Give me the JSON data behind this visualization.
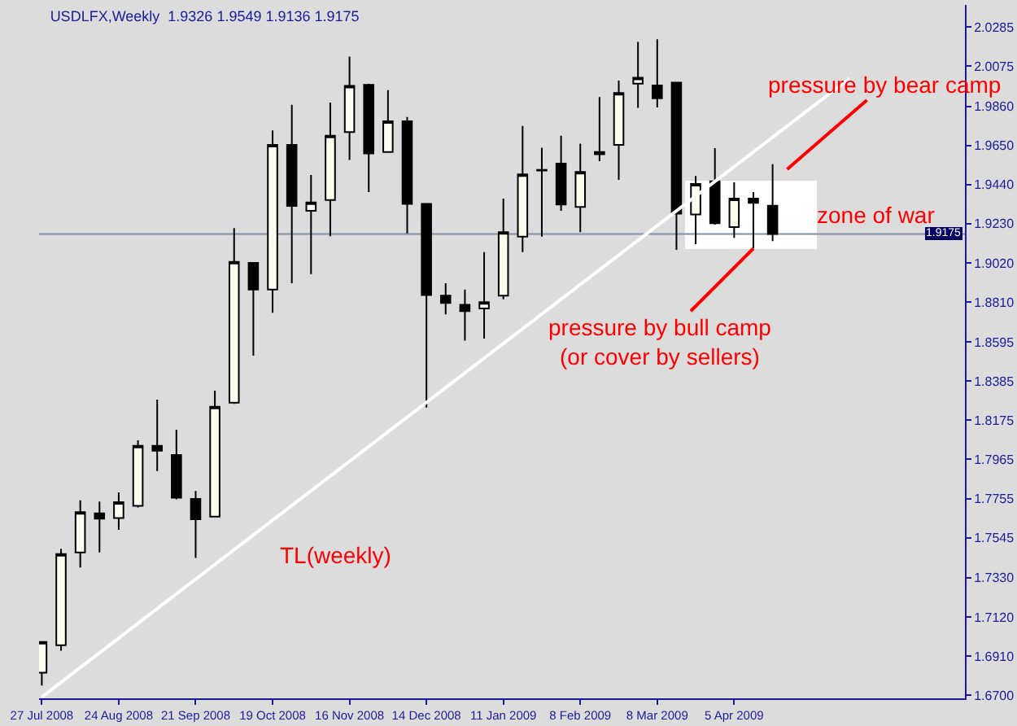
{
  "chart_data": {
    "type": "candlestick",
    "title": "USDLFX,Weekly  1.9326 1.9549 1.9136 1.9175",
    "x": [
      "2008-07-27",
      "2008-08-03",
      "2008-08-10",
      "2008-08-17",
      "2008-08-24",
      "2008-08-31",
      "2008-09-07",
      "2008-09-14",
      "2008-09-21",
      "2008-09-28",
      "2008-10-05",
      "2008-10-12",
      "2008-10-19",
      "2008-10-26",
      "2008-11-02",
      "2008-11-09",
      "2008-11-16",
      "2008-11-23",
      "2008-11-30",
      "2008-12-07",
      "2008-12-14",
      "2008-12-21",
      "2008-12-28",
      "2009-01-04",
      "2009-01-11",
      "2009-01-18",
      "2009-01-25",
      "2009-02-01",
      "2009-02-08",
      "2009-02-15",
      "2009-02-22",
      "2009-03-01",
      "2009-03-08",
      "2009-03-15",
      "2009-03-22",
      "2009-03-29",
      "2009-04-05",
      "2009-04-12",
      "2009-04-19"
    ],
    "ohlc": [
      [
        1.6821,
        1.6985,
        1.6752,
        1.6985
      ],
      [
        1.6968,
        1.7486,
        1.6939,
        1.7457
      ],
      [
        1.7466,
        1.7745,
        1.7385,
        1.7682
      ],
      [
        1.7676,
        1.7739,
        1.7466,
        1.7647
      ],
      [
        1.765,
        1.7788,
        1.7587,
        1.7736
      ],
      [
        1.7716,
        1.8067,
        1.7707,
        1.8038
      ],
      [
        1.8038,
        1.8286,
        1.7903,
        1.8012
      ],
      [
        1.7989,
        1.8124,
        1.7751,
        1.7759
      ],
      [
        1.7753,
        1.7796,
        1.7436,
        1.7644
      ],
      [
        1.7658,
        1.8334,
        1.7655,
        1.8248
      ],
      [
        1.8269,
        1.9206,
        1.8263,
        1.9025
      ],
      [
        1.902,
        1.902,
        1.8522,
        1.8876
      ],
      [
        1.8876,
        1.973,
        1.8752,
        1.9653
      ],
      [
        1.9653,
        1.9868,
        1.891,
        1.9325
      ],
      [
        1.9299,
        1.9491,
        1.8959,
        1.9344
      ],
      [
        1.9357,
        1.988,
        1.9163,
        1.9702
      ],
      [
        1.9722,
        2.0127,
        1.9572,
        1.9969
      ],
      [
        1.9975,
        1.998,
        1.94,
        1.9607
      ],
      [
        1.9615,
        1.9946,
        1.9615,
        1.978
      ],
      [
        1.978,
        1.9802,
        1.9178,
        1.9336
      ],
      [
        1.9336,
        1.934,
        1.8243,
        1.8847
      ],
      [
        1.8844,
        1.891,
        1.8743,
        1.8804
      ],
      [
        1.8795,
        1.8876,
        1.8602,
        1.8761
      ],
      [
        1.8775,
        1.9077,
        1.8613,
        1.8809
      ],
      [
        1.8844,
        1.9365,
        1.8824,
        1.9184
      ],
      [
        1.916,
        1.9754,
        1.9077,
        1.9494
      ],
      [
        1.9515,
        1.9638,
        1.916,
        1.9519
      ],
      [
        1.9552,
        1.9702,
        1.9299,
        1.9333
      ],
      [
        1.932,
        1.9659,
        1.9184,
        1.9508
      ],
      [
        1.9603,
        1.9909,
        1.9566,
        1.9615
      ],
      [
        1.9653,
        1.9998,
        1.9465,
        1.9931
      ],
      [
        1.9981,
        2.0205,
        1.9851,
        2.0013
      ],
      [
        1.9972,
        2.022,
        1.9854,
        1.9903
      ],
      [
        1.9987,
        1.999,
        1.9089,
        1.9284
      ],
      [
        1.9279,
        1.9486,
        1.912,
        1.9443
      ],
      [
        1.9457,
        1.9635,
        1.9225,
        1.9232
      ],
      [
        1.9212,
        1.9452,
        1.9154,
        1.9365
      ],
      [
        1.9365,
        1.94,
        1.9097,
        1.9342
      ],
      [
        1.9326,
        1.9549,
        1.9136,
        1.9175
      ]
    ],
    "series": [
      {
        "type": "line",
        "x": [
          "2008-07-27",
          "2009-05-17"
        ],
        "values": [
          1.669,
          2.001
        ],
        "color": "#ffffff"
      }
    ],
    "xlim": [
      "2008-07-26",
      "2009-06-28"
    ],
    "xticks": [
      {
        "value": "2008-07-27",
        "label": "27 Jul 2008"
      },
      {
        "value": "2008-08-24",
        "label": "24 Aug 2008"
      },
      {
        "value": "2008-09-21",
        "label": "21 Sep 2008"
      },
      {
        "value": "2008-10-19",
        "label": "19 Oct 2008"
      },
      {
        "value": "2008-11-16",
        "label": "16 Nov 2008"
      },
      {
        "value": "2008-12-14",
        "label": "14 Dec 2008"
      },
      {
        "value": "2009-01-11",
        "label": "11 Jan 2009"
      },
      {
        "value": "2009-02-08",
        "label": "8 Feb 2009"
      },
      {
        "value": "2009-03-08",
        "label": "8 Mar 2009"
      },
      {
        "value": "2009-04-05",
        "label": "5 Apr 2009"
      }
    ],
    "ylim": [
      1.6683,
      2.0404
    ],
    "yticks": [
      {
        "value": 2.0285,
        "label": "2.0285"
      },
      {
        "value": 2.0075,
        "label": "2.0075"
      },
      {
        "value": 1.986,
        "label": "1.9860"
      },
      {
        "value": 1.965,
        "label": "1.9650"
      },
      {
        "value": 1.944,
        "label": "1.9440"
      },
      {
        "value": 1.923,
        "label": "1.9230"
      },
      {
        "value": 1.902,
        "label": "1.9020"
      },
      {
        "value": 1.881,
        "label": "1.8810"
      },
      {
        "value": 1.8595,
        "label": "1.8595"
      },
      {
        "value": 1.8385,
        "label": "1.8385"
      },
      {
        "value": 1.8175,
        "label": "1.8175"
      },
      {
        "value": 1.7965,
        "label": "1.7965"
      },
      {
        "value": 1.7755,
        "label": "1.7755"
      },
      {
        "value": 1.7545,
        "label": "1.7545"
      },
      {
        "value": 1.733,
        "label": "1.7330"
      },
      {
        "value": 1.712,
        "label": "1.7120"
      },
      {
        "value": 1.691,
        "label": "1.6910"
      },
      {
        "value": 1.67,
        "label": "1.6700"
      }
    ],
    "ref_lines": [
      {
        "axis": "y",
        "value": 1.9175,
        "label": "1.9175",
        "color": "#8090a8"
      }
    ],
    "annotations": [
      "pressure by bear camp",
      {
        "text": "pressure by bull camp\n(or cover by sellers)",
        "x": "2009-04-12",
        "y": 1.9097
      },
      "zone of war",
      "TL(weekly)"
    ],
    "tick_labels": "xy"
  }
}
